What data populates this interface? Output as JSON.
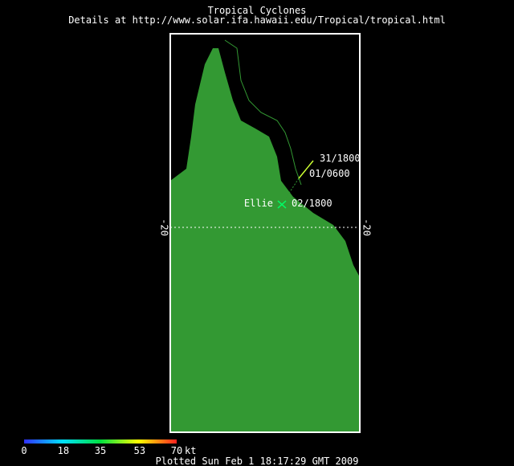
{
  "header": {
    "title": "Tropical Cyclones",
    "subtitle": "Details at http://www.solar.ifa.hawaii.edu/Tropical/tropical.html"
  },
  "map": {
    "latitude_label": "-20",
    "storm": {
      "name": "Ellie",
      "points": [
        "31/1800",
        "01/0600",
        "02/1800"
      ]
    }
  },
  "colorbar": {
    "ticks": [
      0,
      18,
      35,
      53,
      70
    ],
    "unit": "kt"
  },
  "footer": "Plotted Sun Feb 1 18:17:29 GMT 2009"
}
